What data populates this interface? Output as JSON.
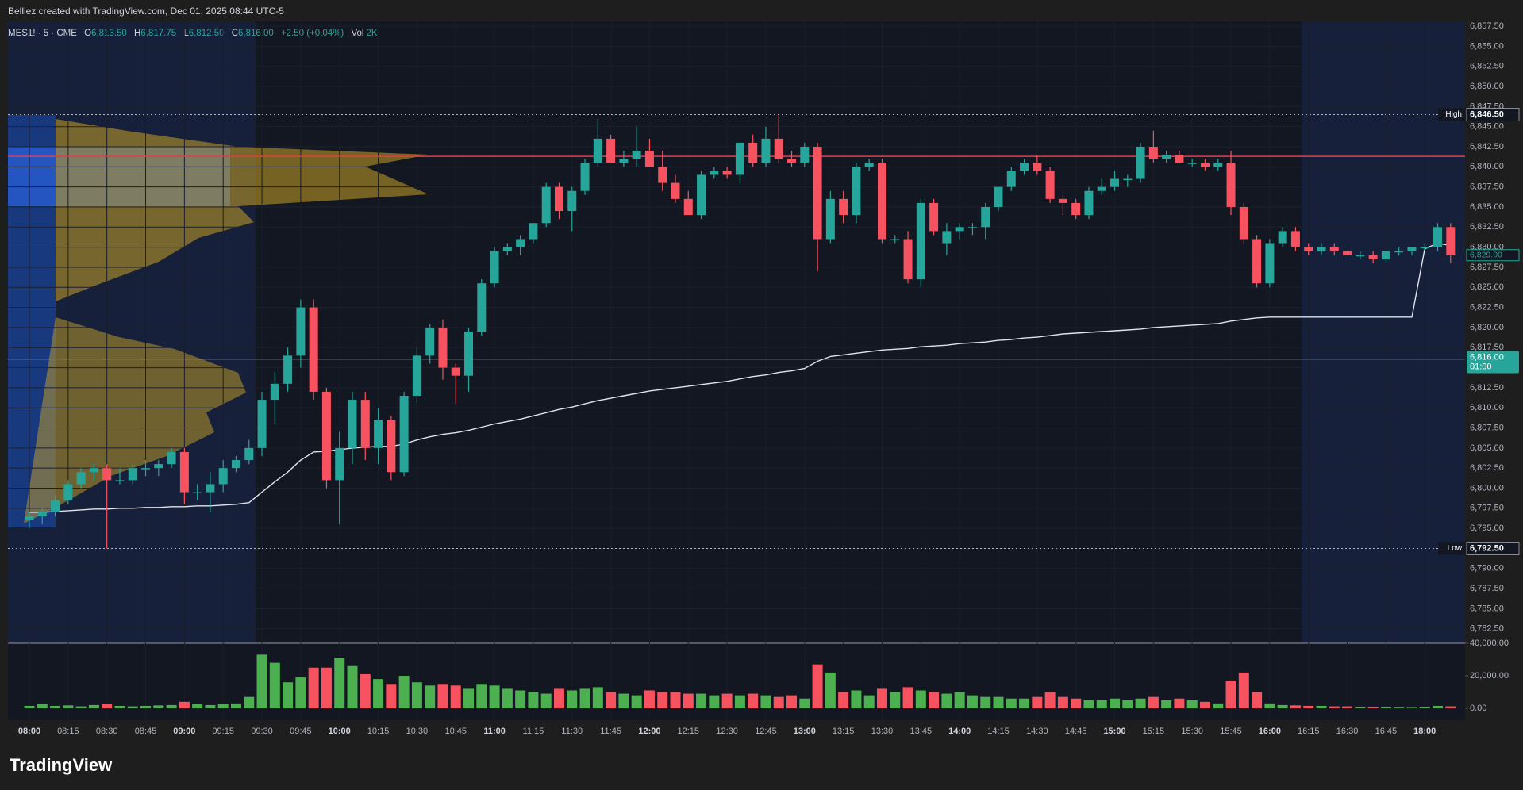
{
  "header": {
    "title": "Belliez created with TradingView.com, Dec 01, 2025 08:44 UTC-5"
  },
  "footer": {
    "logo": "TradingView"
  },
  "chart_data": {
    "type": "candlestick",
    "legend": {
      "symbol": "MES1! · 5 · CME",
      "ohlc": [
        {
          "label": "O",
          "value": "6,813.50"
        },
        {
          "label": "H",
          "value": "6,817.75"
        },
        {
          "label": "L",
          "value": "6,812.50"
        },
        {
          "label": "C",
          "value": "6,816.00"
        }
      ],
      "change": "+2.50 (+0.04%)",
      "vol_label": "Vol",
      "vol": "2K"
    },
    "up_color": "#26a69a",
    "down_color": "#f7525f",
    "vwap_color": "#e0e3eb",
    "poc_color": "#f23645",
    "x": [
      "08:00",
      "08:05",
      "08:10",
      "08:15",
      "08:20",
      "08:25",
      "08:30",
      "08:35",
      "08:40",
      "08:45",
      "08:50",
      "08:55",
      "09:00",
      "09:05",
      "09:10",
      "09:15",
      "09:20",
      "09:25",
      "09:30",
      "09:35",
      "09:40",
      "09:45",
      "09:50",
      "09:55",
      "10:00",
      "10:05",
      "10:10",
      "10:15",
      "10:20",
      "10:25",
      "10:30",
      "10:35",
      "10:40",
      "10:45",
      "10:50",
      "10:55",
      "11:00",
      "11:05",
      "11:10",
      "11:15",
      "11:20",
      "11:25",
      "11:30",
      "11:35",
      "11:40",
      "11:45",
      "11:50",
      "11:55",
      "12:00",
      "12:05",
      "12:10",
      "12:15",
      "12:20",
      "12:25",
      "12:30",
      "12:35",
      "12:40",
      "12:45",
      "12:50",
      "12:55",
      "13:00",
      "13:05",
      "13:10",
      "13:15",
      "13:20",
      "13:25",
      "13:30",
      "13:35",
      "13:40",
      "13:45",
      "13:50",
      "13:55",
      "14:00",
      "14:05",
      "14:10",
      "14:15",
      "14:20",
      "14:25",
      "14:30",
      "14:35",
      "14:40",
      "14:45",
      "14:50",
      "14:55",
      "15:00",
      "15:05",
      "15:10",
      "15:15",
      "15:20",
      "15:25",
      "15:30",
      "15:35",
      "15:40",
      "15:45",
      "15:50",
      "15:55",
      "16:00",
      "16:05",
      "16:10",
      "16:15",
      "16:20",
      "16:25",
      "16:30",
      "16:35",
      "16:40",
      "16:45",
      "16:50",
      "16:55",
      "18:00",
      "18:05",
      "18:10"
    ],
    "candles": [
      [
        6796,
        6797,
        6795,
        6796.5
      ],
      [
        6796.5,
        6797.5,
        6795.5,
        6797
      ],
      [
        6797,
        6799,
        6796.5,
        6798.5
      ],
      [
        6798.5,
        6801,
        6798,
        6800.5
      ],
      [
        6800.5,
        6802.5,
        6800,
        6802
      ],
      [
        6802,
        6803,
        6801,
        6802.5
      ],
      [
        6802.5,
        6803,
        6792.5,
        6801
      ],
      [
        6801,
        6802.5,
        6800.5,
        6801
      ],
      [
        6801,
        6803,
        6800.5,
        6802.5
      ],
      [
        6802.5,
        6803.5,
        6801.5,
        6802.5
      ],
      [
        6802.5,
        6803.5,
        6801.5,
        6803
      ],
      [
        6803,
        6805,
        6802.5,
        6804.5
      ],
      [
        6804.5,
        6805,
        6798,
        6799.5
      ],
      [
        6799.5,
        6800.5,
        6798.5,
        6799.5
      ],
      [
        6799.5,
        6802,
        6797,
        6800.5
      ],
      [
        6800.5,
        6803.5,
        6799.5,
        6802.5
      ],
      [
        6802.5,
        6804,
        6802,
        6803.5
      ],
      [
        6803.5,
        6806,
        6803,
        6805
      ],
      [
        6805,
        6812,
        6804,
        6811
      ],
      [
        6811,
        6814.5,
        6808,
        6813
      ],
      [
        6813,
        6817.5,
        6812,
        6816.5
      ],
      [
        6816.5,
        6823.5,
        6815,
        6822.5
      ],
      [
        6822.5,
        6823.5,
        6811,
        6812
      ],
      [
        6812,
        6812.5,
        6800,
        6801
      ],
      [
        6801,
        6807,
        6795.5,
        6805
      ],
      [
        6805,
        6812,
        6803,
        6811
      ],
      [
        6811,
        6812,
        6803.5,
        6805
      ],
      [
        6805,
        6810,
        6803,
        6808.5
      ],
      [
        6808.5,
        6809,
        6801,
        6802
      ],
      [
        6802,
        6812,
        6801.5,
        6811.5
      ],
      [
        6811.5,
        6817.5,
        6810.5,
        6816.5
      ],
      [
        6816.5,
        6820.5,
        6815.5,
        6820
      ],
      [
        6820,
        6821,
        6813.5,
        6815
      ],
      [
        6815,
        6815.5,
        6810.5,
        6814
      ],
      [
        6814,
        6820,
        6812,
        6819.5
      ],
      [
        6819.5,
        6826,
        6819,
        6825.5
      ],
      [
        6825.5,
        6830,
        6825,
        6829.5
      ],
      [
        6829.5,
        6830.5,
        6829,
        6830
      ],
      [
        6830,
        6831.5,
        6829,
        6831
      ],
      [
        6831,
        6833,
        6830.5,
        6833
      ],
      [
        6833,
        6838,
        6832.5,
        6837.5
      ],
      [
        6837.5,
        6838,
        6833.5,
        6834.5
      ],
      [
        6834.5,
        6837.5,
        6832,
        6837
      ],
      [
        6837,
        6841,
        6836.5,
        6840.5
      ],
      [
        6840.5,
        6846,
        6840,
        6843.5
      ],
      [
        6843.5,
        6844,
        6840.5,
        6840.5
      ],
      [
        6840.5,
        6842,
        6840,
        6841
      ],
      [
        6841,
        6845,
        6840,
        6842
      ],
      [
        6842,
        6843.5,
        6840,
        6840
      ],
      [
        6840,
        6842,
        6837,
        6838
      ],
      [
        6838,
        6839,
        6835.5,
        6836
      ],
      [
        6836,
        6837,
        6834,
        6834
      ],
      [
        6834,
        6839.5,
        6833.5,
        6839
      ],
      [
        6839,
        6840,
        6838.5,
        6839.5
      ],
      [
        6839.5,
        6840,
        6838.5,
        6839
      ],
      [
        6839,
        6843,
        6838,
        6843
      ],
      [
        6843,
        6844,
        6840,
        6840.5
      ],
      [
        6840.5,
        6845,
        6840,
        6843.5
      ],
      [
        6843.5,
        6846.5,
        6840.5,
        6841
      ],
      [
        6841,
        6842,
        6840,
        6840.5
      ],
      [
        6840.5,
        6843,
        6840,
        6842.5
      ],
      [
        6842.5,
        6843,
        6827,
        6831
      ],
      [
        6831,
        6837,
        6830.5,
        6836
      ],
      [
        6836,
        6837,
        6833,
        6834
      ],
      [
        6834,
        6840.5,
        6833,
        6840
      ],
      [
        6840,
        6841,
        6839.5,
        6840.5
      ],
      [
        6840.5,
        6841,
        6830.5,
        6831
      ],
      [
        6831,
        6831.5,
        6830.5,
        6831
      ],
      [
        6831,
        6832,
        6825.5,
        6826
      ],
      [
        6826,
        6836,
        6825,
        6835.5
      ],
      [
        6835.5,
        6836,
        6831.5,
        6832
      ],
      [
        6830.5,
        6833,
        6829,
        6832
      ],
      [
        6832,
        6833,
        6831,
        6832.5
      ],
      [
        6832.5,
        6833,
        6831.5,
        6832.5
      ],
      [
        6832.5,
        6835.5,
        6831,
        6835
      ],
      [
        6835,
        6837.5,
        6834.5,
        6837.5
      ],
      [
        6837.5,
        6840,
        6837,
        6839.5
      ],
      [
        6839.5,
        6841,
        6839,
        6840.5
      ],
      [
        6840.5,
        6841.5,
        6839,
        6839.5
      ],
      [
        6839.5,
        6840,
        6835.5,
        6836
      ],
      [
        6836,
        6836.5,
        6834,
        6835.5
      ],
      [
        6835.5,
        6836,
        6833.5,
        6834
      ],
      [
        6834,
        6837.5,
        6833.5,
        6837
      ],
      [
        6837,
        6838.5,
        6836.5,
        6837.5
      ],
      [
        6837.5,
        6839.5,
        6837,
        6838.5
      ],
      [
        6838.5,
        6839,
        6837.5,
        6838.5
      ],
      [
        6838.5,
        6843,
        6838,
        6842.5
      ],
      [
        6842.5,
        6844.5,
        6840.5,
        6841
      ],
      [
        6841,
        6842,
        6840.5,
        6841.5
      ],
      [
        6841.5,
        6842,
        6840.5,
        6840.5
      ],
      [
        6840.5,
        6841,
        6840,
        6840.5
      ],
      [
        6840.5,
        6841,
        6839.5,
        6840
      ],
      [
        6840,
        6841,
        6839.5,
        6840.5
      ],
      [
        6840.5,
        6842,
        6834,
        6835
      ],
      [
        6835,
        6835.5,
        6830.5,
        6831
      ],
      [
        6831,
        6831.5,
        6825,
        6825.5
      ],
      [
        6825.5,
        6831,
        6825,
        6830.5
      ],
      [
        6830.5,
        6832.5,
        6830,
        6832
      ],
      [
        6832,
        6832.5,
        6829.5,
        6830
      ],
      [
        6830,
        6830.5,
        6829,
        6829.5
      ],
      [
        6829.5,
        6830.5,
        6829,
        6830
      ],
      [
        6830,
        6830.5,
        6829,
        6829.5
      ],
      [
        6829.5,
        6829.5,
        6829,
        6829
      ],
      [
        6829,
        6829.5,
        6828.5,
        6829
      ],
      [
        6829,
        6829.5,
        6828,
        6828.5
      ],
      [
        6828.5,
        6829.5,
        6828,
        6829.5
      ],
      [
        6829.5,
        6830,
        6829,
        6829.5
      ],
      [
        6829.5,
        6830,
        6829,
        6830
      ],
      [
        6830,
        6830.5,
        6829.5,
        6830
      ],
      [
        6830,
        6833,
        6829.5,
        6832.5
      ],
      [
        6832.5,
        6833,
        6828,
        6829
      ]
    ],
    "volumes": [
      1500,
      2500,
      1500,
      1800,
      1200,
      2000,
      2500,
      1500,
      1200,
      1500,
      1800,
      2000,
      4000,
      2500,
      2000,
      2500,
      3000,
      7000,
      33000,
      28000,
      16000,
      19000,
      25000,
      25000,
      31000,
      26000,
      21000,
      18000,
      15000,
      20000,
      16000,
      14000,
      15000,
      14000,
      12000,
      15000,
      14000,
      12000,
      11000,
      10000,
      9000,
      12000,
      11000,
      12000,
      13000,
      10000,
      9000,
      8000,
      11000,
      10000,
      10000,
      9000,
      9000,
      8000,
      9000,
      8000,
      9000,
      8000,
      7000,
      8000,
      6000,
      27000,
      22000,
      10000,
      11000,
      8000,
      12000,
      10000,
      13000,
      11000,
      10000,
      9000,
      10000,
      8000,
      7000,
      7000,
      6000,
      6000,
      7000,
      10000,
      7000,
      6000,
      5000,
      5000,
      6000,
      5000,
      6000,
      7000,
      5000,
      6000,
      5000,
      4000,
      3000,
      17000,
      22000,
      10000,
      3000,
      2000,
      1800,
      1500,
      1500,
      1200,
      1200,
      1000,
      1000,
      1000,
      900,
      800,
      1000,
      1500,
      1200
    ],
    "vwap": [
      6797.0,
      6797.0,
      6797.1,
      6797.2,
      6797.3,
      6797.4,
      6797.4,
      6797.5,
      6797.5,
      6797.6,
      6797.6,
      6797.7,
      6797.7,
      6797.8,
      6797.8,
      6797.9,
      6798.0,
      6798.2,
      6799.5,
      6800.8,
      6802.0,
      6803.5,
      6804.5,
      6804.6,
      6804.8,
      6805.0,
      6805.1,
      6805.2,
      6805.2,
      6805.5,
      6806.0,
      6806.4,
      6806.7,
      6806.9,
      6807.2,
      6807.6,
      6808.0,
      6808.3,
      6808.6,
      6809.0,
      6809.4,
      6809.8,
      6810.1,
      6810.5,
      6810.9,
      6811.2,
      6811.5,
      6811.8,
      6812.1,
      6812.3,
      6812.5,
      6812.7,
      6812.9,
      6813.1,
      6813.3,
      6813.6,
      6813.9,
      6814.1,
      6814.4,
      6814.6,
      6814.9,
      6815.8,
      6816.4,
      6816.6,
      6816.8,
      6817.0,
      6817.2,
      6817.3,
      6817.4,
      6817.6,
      6817.7,
      6817.8,
      6818.0,
      6818.1,
      6818.2,
      6818.4,
      6818.5,
      6818.7,
      6818.8,
      6819.0,
      6819.2,
      6819.3,
      6819.4,
      6819.5,
      6819.6,
      6819.7,
      6819.8,
      6820.0,
      6820.1,
      6820.2,
      6820.3,
      6820.4,
      6820.5,
      6820.8,
      6821.0,
      6821.2,
      6821.3,
      6821.3,
      6821.3,
      6821.3,
      6821.3,
      6821.3,
      6821.3,
      6821.3,
      6821.3,
      6821.3,
      6821.3,
      6821.3,
      6829.8,
      6830.5,
      6830.2
    ],
    "poc": 6841.3,
    "ylim": [
      6780.7,
      6858.1
    ],
    "yticks": [
      {
        "value": 6782.5,
        "label": "6,782.50"
      },
      {
        "value": 6785,
        "label": "6,785.00"
      },
      {
        "value": 6787.5,
        "label": "6,787.50"
      },
      {
        "value": 6790,
        "label": "6,790.00"
      },
      {
        "value": 6792.5,
        "label": "6,792.50"
      },
      {
        "value": 6795,
        "label": "6,795.00"
      },
      {
        "value": 6797.5,
        "label": "6,797.50"
      },
      {
        "value": 6800,
        "label": "6,800.00"
      },
      {
        "value": 6802.5,
        "label": "6,802.50"
      },
      {
        "value": 6805,
        "label": "6,805.00"
      },
      {
        "value": 6807.5,
        "label": "6,807.50"
      },
      {
        "value": 6810,
        "label": "6,810.00"
      },
      {
        "value": 6812.5,
        "label": "6,812.50"
      },
      {
        "value": 6815,
        "label": "6,815.00"
      },
      {
        "value": 6817.5,
        "label": "6,817.50"
      },
      {
        "value": 6820,
        "label": "6,820.00"
      },
      {
        "value": 6822.5,
        "label": "6,822.50"
      },
      {
        "value": 6825,
        "label": "6,825.00"
      },
      {
        "value": 6827.5,
        "label": "6,827.50"
      },
      {
        "value": 6830,
        "label": "6,830.00"
      },
      {
        "value": 6832.5,
        "label": "6,832.50"
      },
      {
        "value": 6835,
        "label": "6,835.00"
      },
      {
        "value": 6837.5,
        "label": "6,837.50"
      },
      {
        "value": 6840,
        "label": "6,840.00"
      },
      {
        "value": 6842.5,
        "label": "6,842.50"
      },
      {
        "value": 6845,
        "label": "6,845.00"
      },
      {
        "value": 6847.5,
        "label": "6,847.50"
      },
      {
        "value": 6850,
        "label": "6,850.00"
      },
      {
        "value": 6852.5,
        "label": "6,852.50"
      },
      {
        "value": 6855,
        "label": "6,855.00"
      },
      {
        "value": 6857.5,
        "label": "6,857.50"
      }
    ],
    "y2lim": [
      -7300,
      40000
    ],
    "y2ticks": [
      {
        "value": 0,
        "label": "0.00"
      },
      {
        "value": 20000,
        "label": "20,000.00"
      },
      {
        "value": 40000,
        "label": "40,000.00"
      }
    ],
    "levels": [
      {
        "label": "High",
        "value": 6846.5,
        "price_label": "6,846.50"
      },
      {
        "label": "Low",
        "value": 6792.5,
        "price_label": "6,792.50"
      }
    ],
    "current": {
      "value": 6816,
      "label": "6,816.00",
      "countdown": "01:00"
    },
    "last_price": {
      "value": 6829,
      "label": "6,829.00"
    },
    "grid": true
  }
}
